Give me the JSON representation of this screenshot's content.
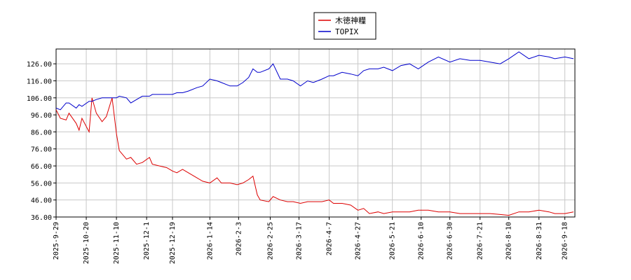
{
  "chart_data": {
    "type": "line",
    "x": [
      "2025-9-29",
      "2025-10-2",
      "2025-10-6",
      "2025-10-8",
      "2025-10-13",
      "2025-10-15",
      "2025-10-17",
      "2025-10-22",
      "2025-10-24",
      "2025-10-27",
      "2025-10-31",
      "2025-11-3",
      "2025-11-7",
      "2025-11-10",
      "2025-11-12",
      "2025-11-17",
      "2025-11-20",
      "2025-11-24",
      "2025-11-28",
      "2025-12-3",
      "2025-12-5",
      "2025-12-10",
      "2025-12-15",
      "2025-12-19",
      "2025-12-22",
      "2025-12-26",
      "2025-12-30",
      "2026-1-5",
      "2026-1-9",
      "2026-1-14",
      "2026-1-19",
      "2026-1-22",
      "2026-1-28",
      "2026-2-2",
      "2026-2-6",
      "2026-2-10",
      "2026-2-13",
      "2026-2-16",
      "2026-2-18",
      "2026-2-24",
      "2026-2-27",
      "2026-3-4",
      "2026-3-9",
      "2026-3-13",
      "2026-3-18",
      "2026-3-23",
      "2026-3-27",
      "2026-4-2",
      "2026-4-7",
      "2026-4-10",
      "2026-4-16",
      "2026-4-22",
      "2026-4-27",
      "2026-5-1",
      "2026-5-5",
      "2026-5-11",
      "2026-5-15",
      "2026-5-21",
      "2026-5-27",
      "2026-6-2",
      "2026-6-8",
      "2026-6-15",
      "2026-6-22",
      "2026-6-30",
      "2026-7-7",
      "2026-7-14",
      "2026-7-21",
      "2026-7-28",
      "2026-8-4",
      "2026-8-10",
      "2026-8-17",
      "2026-8-24",
      "2026-8-31",
      "2026-9-7",
      "2026-9-11",
      "2026-9-18",
      "2026-9-24"
    ],
    "series": [
      {
        "name": "木徳神糧",
        "color": "#dd0000",
        "values": [
          99,
          94,
          93,
          97,
          91,
          87,
          94,
          86,
          106,
          97,
          92,
          95,
          106,
          85,
          75,
          70,
          71,
          67,
          68,
          71,
          67,
          66,
          65,
          63,
          62,
          64,
          62,
          59,
          57,
          56,
          59,
          56,
          56,
          55,
          56,
          58,
          60,
          49,
          46,
          45,
          48,
          46,
          45,
          45,
          44,
          45,
          45,
          45,
          46,
          44,
          44,
          43,
          40,
          41,
          38,
          39,
          38,
          39,
          39,
          39,
          40,
          40,
          39,
          39,
          38,
          38,
          38,
          38,
          37.5,
          37,
          39,
          39,
          40,
          39,
          38,
          38,
          39
        ]
      },
      {
        "name": "TOPIX",
        "color": "#0000cc",
        "values": [
          100,
          99,
          103,
          103,
          100,
          102,
          101,
          104,
          104,
          105,
          106,
          106,
          106,
          106,
          107,
          106,
          103,
          105,
          107,
          107,
          108,
          108,
          108,
          108,
          109,
          109,
          110,
          112,
          113,
          117,
          116,
          115,
          113,
          113,
          115,
          118,
          123,
          121,
          121,
          123,
          126,
          117,
          117,
          116,
          113,
          116,
          115,
          117,
          119,
          119,
          121,
          120,
          119,
          122,
          123,
          123,
          124,
          122,
          125,
          126,
          123,
          127,
          130,
          127,
          129,
          128,
          128,
          127,
          126,
          129,
          133,
          129,
          131,
          130,
          129,
          130,
          129
        ]
      }
    ],
    "xlim": [
      "2025-9-29",
      "2026-9-25"
    ],
    "xticks": [
      "2025-9-29",
      "2025-10-20",
      "2025-11-10",
      "2025-12-1",
      "2025-12-19",
      "2026-1-14",
      "2026-2-3",
      "2026-2-25",
      "2026-3-17",
      "2026-4-7",
      "2026-4-27",
      "2026-5-21",
      "2026-6-10",
      "2026-6-30",
      "2026-7-21",
      "2026-8-10",
      "2026-8-31",
      "2026-9-18"
    ],
    "ylim": [
      36,
      134.7
    ],
    "yticks": [
      {
        "value": 36,
        "label": "36.00"
      },
      {
        "value": 46,
        "label": "46.00"
      },
      {
        "value": 56,
        "label": "56.00"
      },
      {
        "value": 66,
        "label": "66.00"
      },
      {
        "value": 76,
        "label": "76.00"
      },
      {
        "value": 86,
        "label": "86.00"
      },
      {
        "value": 96,
        "label": "96.00"
      },
      {
        "value": 106,
        "label": "106.00"
      },
      {
        "value": 116,
        "label": "116.00"
      },
      {
        "value": 126,
        "label": "126.00"
      }
    ],
    "grid": true
  }
}
